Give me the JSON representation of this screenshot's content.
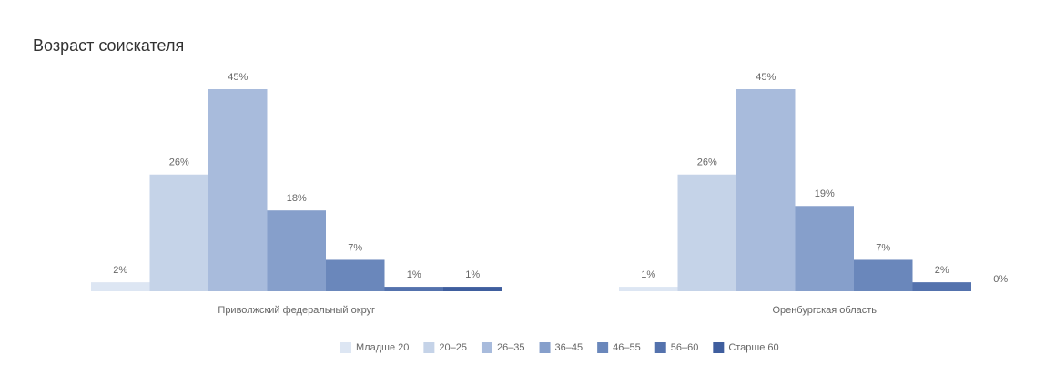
{
  "chart_data": {
    "type": "bar",
    "title": "Возраст соискателя",
    "categories": [
      "Приволжский федеральный округ",
      "Оренбургская область"
    ],
    "series": [
      {
        "name": "Младше 20",
        "color": "#dde6f3",
        "values": [
          2,
          1
        ],
        "value_labels": [
          "2%",
          "1%"
        ]
      },
      {
        "name": "20–25",
        "color": "#c5d3e8",
        "values": [
          26,
          26
        ],
        "value_labels": [
          "26%",
          "26%"
        ]
      },
      {
        "name": "26–35",
        "color": "#a8bbdc",
        "values": [
          45,
          45
        ],
        "value_labels": [
          "45%",
          "45%"
        ]
      },
      {
        "name": "36–45",
        "color": "#869fcb",
        "values": [
          18,
          19
        ],
        "value_labels": [
          "18%",
          "19%"
        ]
      },
      {
        "name": "46–55",
        "color": "#6a87bb",
        "values": [
          7,
          7
        ],
        "value_labels": [
          "7%",
          "7%"
        ]
      },
      {
        "name": "56–60",
        "color": "#5472ad",
        "values": [
          1,
          2
        ],
        "value_labels": [
          "1%",
          "2%"
        ]
      },
      {
        "name": "Старше 60",
        "color": "#3f5e9e",
        "values": [
          1,
          0
        ],
        "value_labels": [
          "1%",
          "0%"
        ]
      }
    ]
  }
}
